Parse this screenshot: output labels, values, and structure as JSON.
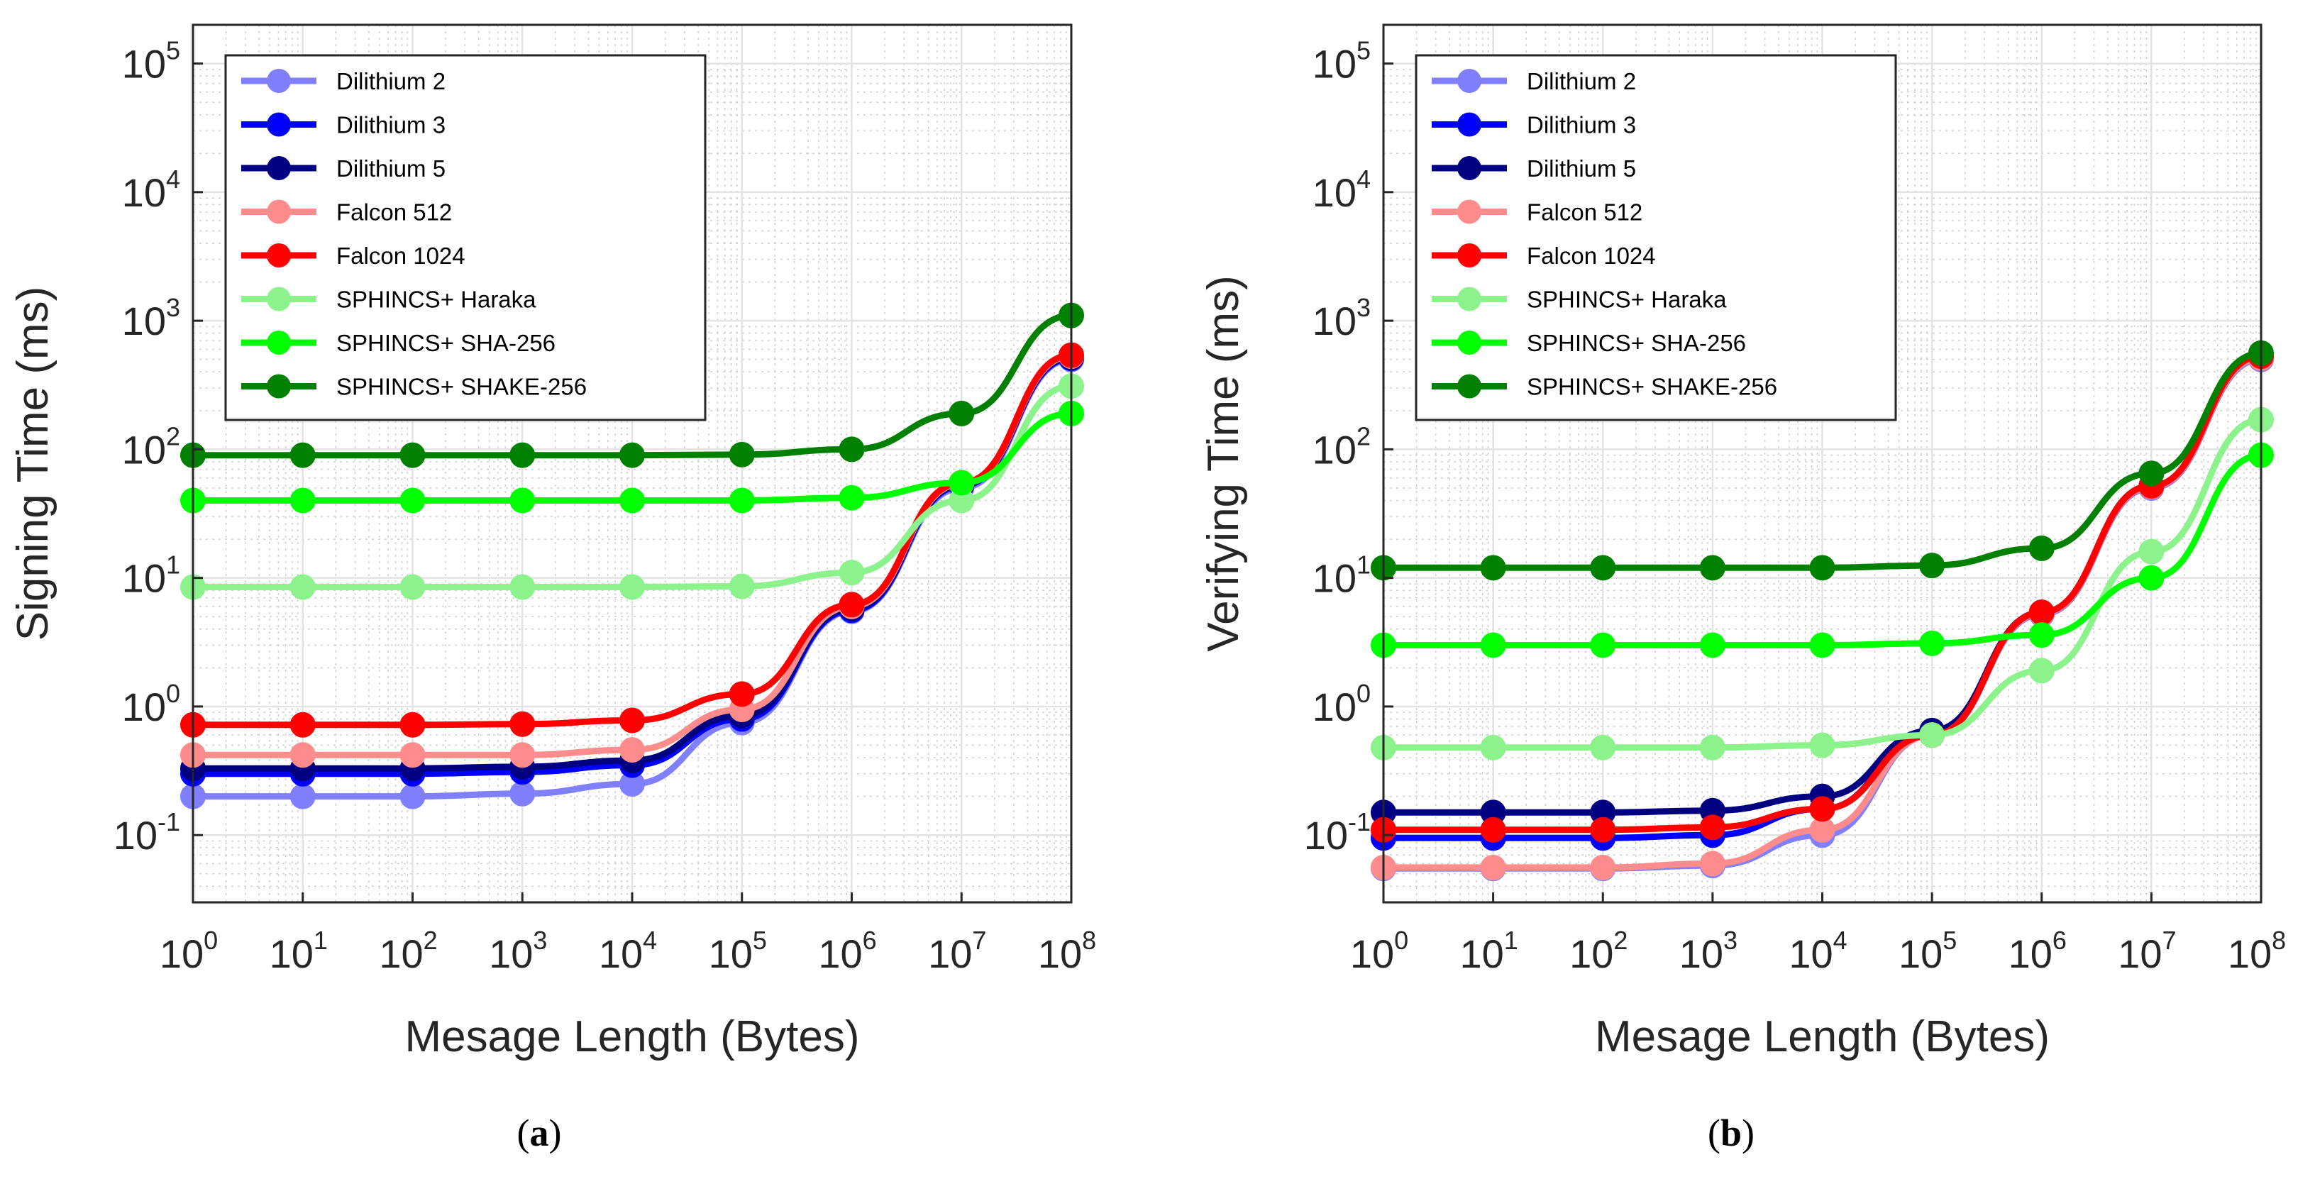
{
  "chart_data": [
    {
      "type": "line",
      "panel_caption": "a",
      "title": "",
      "xlabel": "Mesage Length (Bytes)",
      "ylabel": "Signing Time (ms)",
      "xscale": "log",
      "yscale": "log",
      "xlim": [
        1,
        100000000
      ],
      "ylim": [
        0.03,
        200000
      ],
      "grid": true,
      "legend_position": "top-left",
      "x": [
        1,
        10,
        100,
        1000,
        10000,
        100000,
        1000000,
        10000000,
        100000000
      ],
      "x_tick_exponents": [
        "0",
        "1",
        "2",
        "3",
        "4",
        "5",
        "6",
        "7",
        "8"
      ],
      "y_tick_values": [
        0.1,
        1,
        10,
        100,
        1000,
        10000,
        100000
      ],
      "y_tick_exponents": [
        "-1",
        "0",
        "1",
        "2",
        "3",
        "4",
        "5"
      ],
      "tick_base": "10",
      "series": [
        {
          "name": "Dilithium 2",
          "color": "#8080ff",
          "values": [
            0.2,
            0.2,
            0.2,
            0.21,
            0.25,
            0.75,
            5.5,
            50,
            500
          ]
        },
        {
          "name": "Dilithium 3",
          "color": "#0000ff",
          "values": [
            0.3,
            0.3,
            0.3,
            0.31,
            0.35,
            0.8,
            5.6,
            52,
            510
          ]
        },
        {
          "name": "Dilithium 5",
          "color": "#000080",
          "values": [
            0.33,
            0.33,
            0.33,
            0.34,
            0.38,
            0.85,
            5.8,
            53,
            520
          ]
        },
        {
          "name": "Falcon 512",
          "color": "#ff8c8c",
          "values": [
            0.42,
            0.42,
            0.42,
            0.42,
            0.46,
            0.95,
            6,
            54,
            530
          ]
        },
        {
          "name": "Falcon 1024",
          "color": "#ff0000",
          "values": [
            0.72,
            0.72,
            0.72,
            0.73,
            0.78,
            1.25,
            6.2,
            55,
            540
          ]
        },
        {
          "name": "SPHINCS+ Haraka",
          "color": "#8cf28c",
          "values": [
            8.5,
            8.5,
            8.5,
            8.5,
            8.5,
            8.6,
            11,
            40,
            310
          ]
        },
        {
          "name": "SPHINCS+ SHA-256",
          "color": "#00ff00",
          "values": [
            40,
            40,
            40,
            40,
            40,
            40,
            42,
            55,
            190
          ]
        },
        {
          "name": "SPHINCS+ SHAKE-256",
          "color": "#008000",
          "values": [
            90,
            90,
            90,
            90,
            90,
            91,
            100,
            190,
            1100
          ]
        }
      ]
    },
    {
      "type": "line",
      "panel_caption": "b",
      "title": "",
      "xlabel": "Mesage Length (Bytes)",
      "ylabel": "Verifying Time (ms)",
      "xscale": "log",
      "yscale": "log",
      "xlim": [
        1,
        100000000
      ],
      "ylim": [
        0.03,
        200000
      ],
      "grid": true,
      "legend_position": "top-left",
      "x": [
        1,
        10,
        100,
        1000,
        10000,
        100000,
        1000000,
        10000000,
        100000000
      ],
      "x_tick_exponents": [
        "0",
        "1",
        "2",
        "3",
        "4",
        "5",
        "6",
        "7",
        "8"
      ],
      "y_tick_values": [
        0.1,
        1,
        10,
        100,
        1000,
        10000,
        100000
      ],
      "y_tick_exponents": [
        "-1",
        "0",
        "1",
        "2",
        "3",
        "4",
        "5"
      ],
      "tick_base": "10",
      "series": [
        {
          "name": "Dilithium 2",
          "color": "#8080ff",
          "values": [
            0.055,
            0.055,
            0.055,
            0.058,
            0.1,
            0.6,
            5.2,
            50,
            500
          ]
        },
        {
          "name": "Dilithium 3",
          "color": "#0000ff",
          "values": [
            0.095,
            0.095,
            0.095,
            0.1,
            0.16,
            0.62,
            5.3,
            51,
            510
          ]
        },
        {
          "name": "Dilithium 5",
          "color": "#000080",
          "values": [
            0.15,
            0.15,
            0.15,
            0.155,
            0.2,
            0.65,
            5.4,
            52,
            520
          ]
        },
        {
          "name": "Falcon 512",
          "color": "#ff8c8c",
          "values": [
            0.056,
            0.056,
            0.056,
            0.06,
            0.11,
            0.6,
            5.3,
            51,
            510
          ]
        },
        {
          "name": "Falcon 1024",
          "color": "#ff0000",
          "values": [
            0.11,
            0.11,
            0.11,
            0.115,
            0.16,
            0.6,
            5.4,
            52,
            530
          ]
        },
        {
          "name": "SPHINCS+ Haraka",
          "color": "#8cf28c",
          "values": [
            0.48,
            0.48,
            0.48,
            0.48,
            0.5,
            0.6,
            1.9,
            16,
            170
          ]
        },
        {
          "name": "SPHINCS+ SHA-256",
          "color": "#00ff00",
          "values": [
            3,
            3,
            3,
            3,
            3,
            3.1,
            3.6,
            10,
            90
          ]
        },
        {
          "name": "SPHINCS+ SHAKE-256",
          "color": "#008000",
          "values": [
            12,
            12,
            12,
            12,
            12,
            12.5,
            17,
            65,
            560
          ]
        }
      ]
    }
  ]
}
